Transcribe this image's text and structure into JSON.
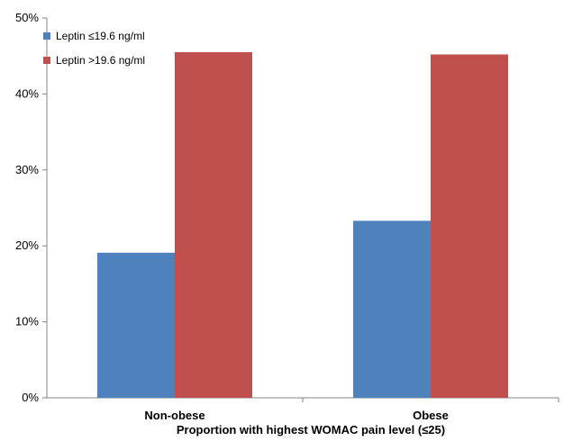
{
  "chart_data": {
    "type": "bar",
    "categories": [
      "Non-obese",
      "Obese"
    ],
    "series": [
      {
        "name": "Leptin ≤19.6 ng/ml",
        "color": "#4f81bd",
        "values": [
          19.1,
          23.3
        ]
      },
      {
        "name": "Leptin >19.6 ng/ml",
        "color": "#c0504d",
        "values": [
          45.5,
          45.2
        ]
      }
    ],
    "title": "",
    "xlabel": "Proportion with highest WOMAC pain level (≤25)",
    "ylabel": "",
    "ylim": [
      0,
      50
    ],
    "yticks": [
      0,
      10,
      20,
      30,
      40,
      50
    ],
    "ytick_labels": [
      "0%",
      "10%",
      "20%",
      "30%",
      "40%",
      "50%"
    ],
    "grid": false,
    "legend_position": "top-left"
  }
}
